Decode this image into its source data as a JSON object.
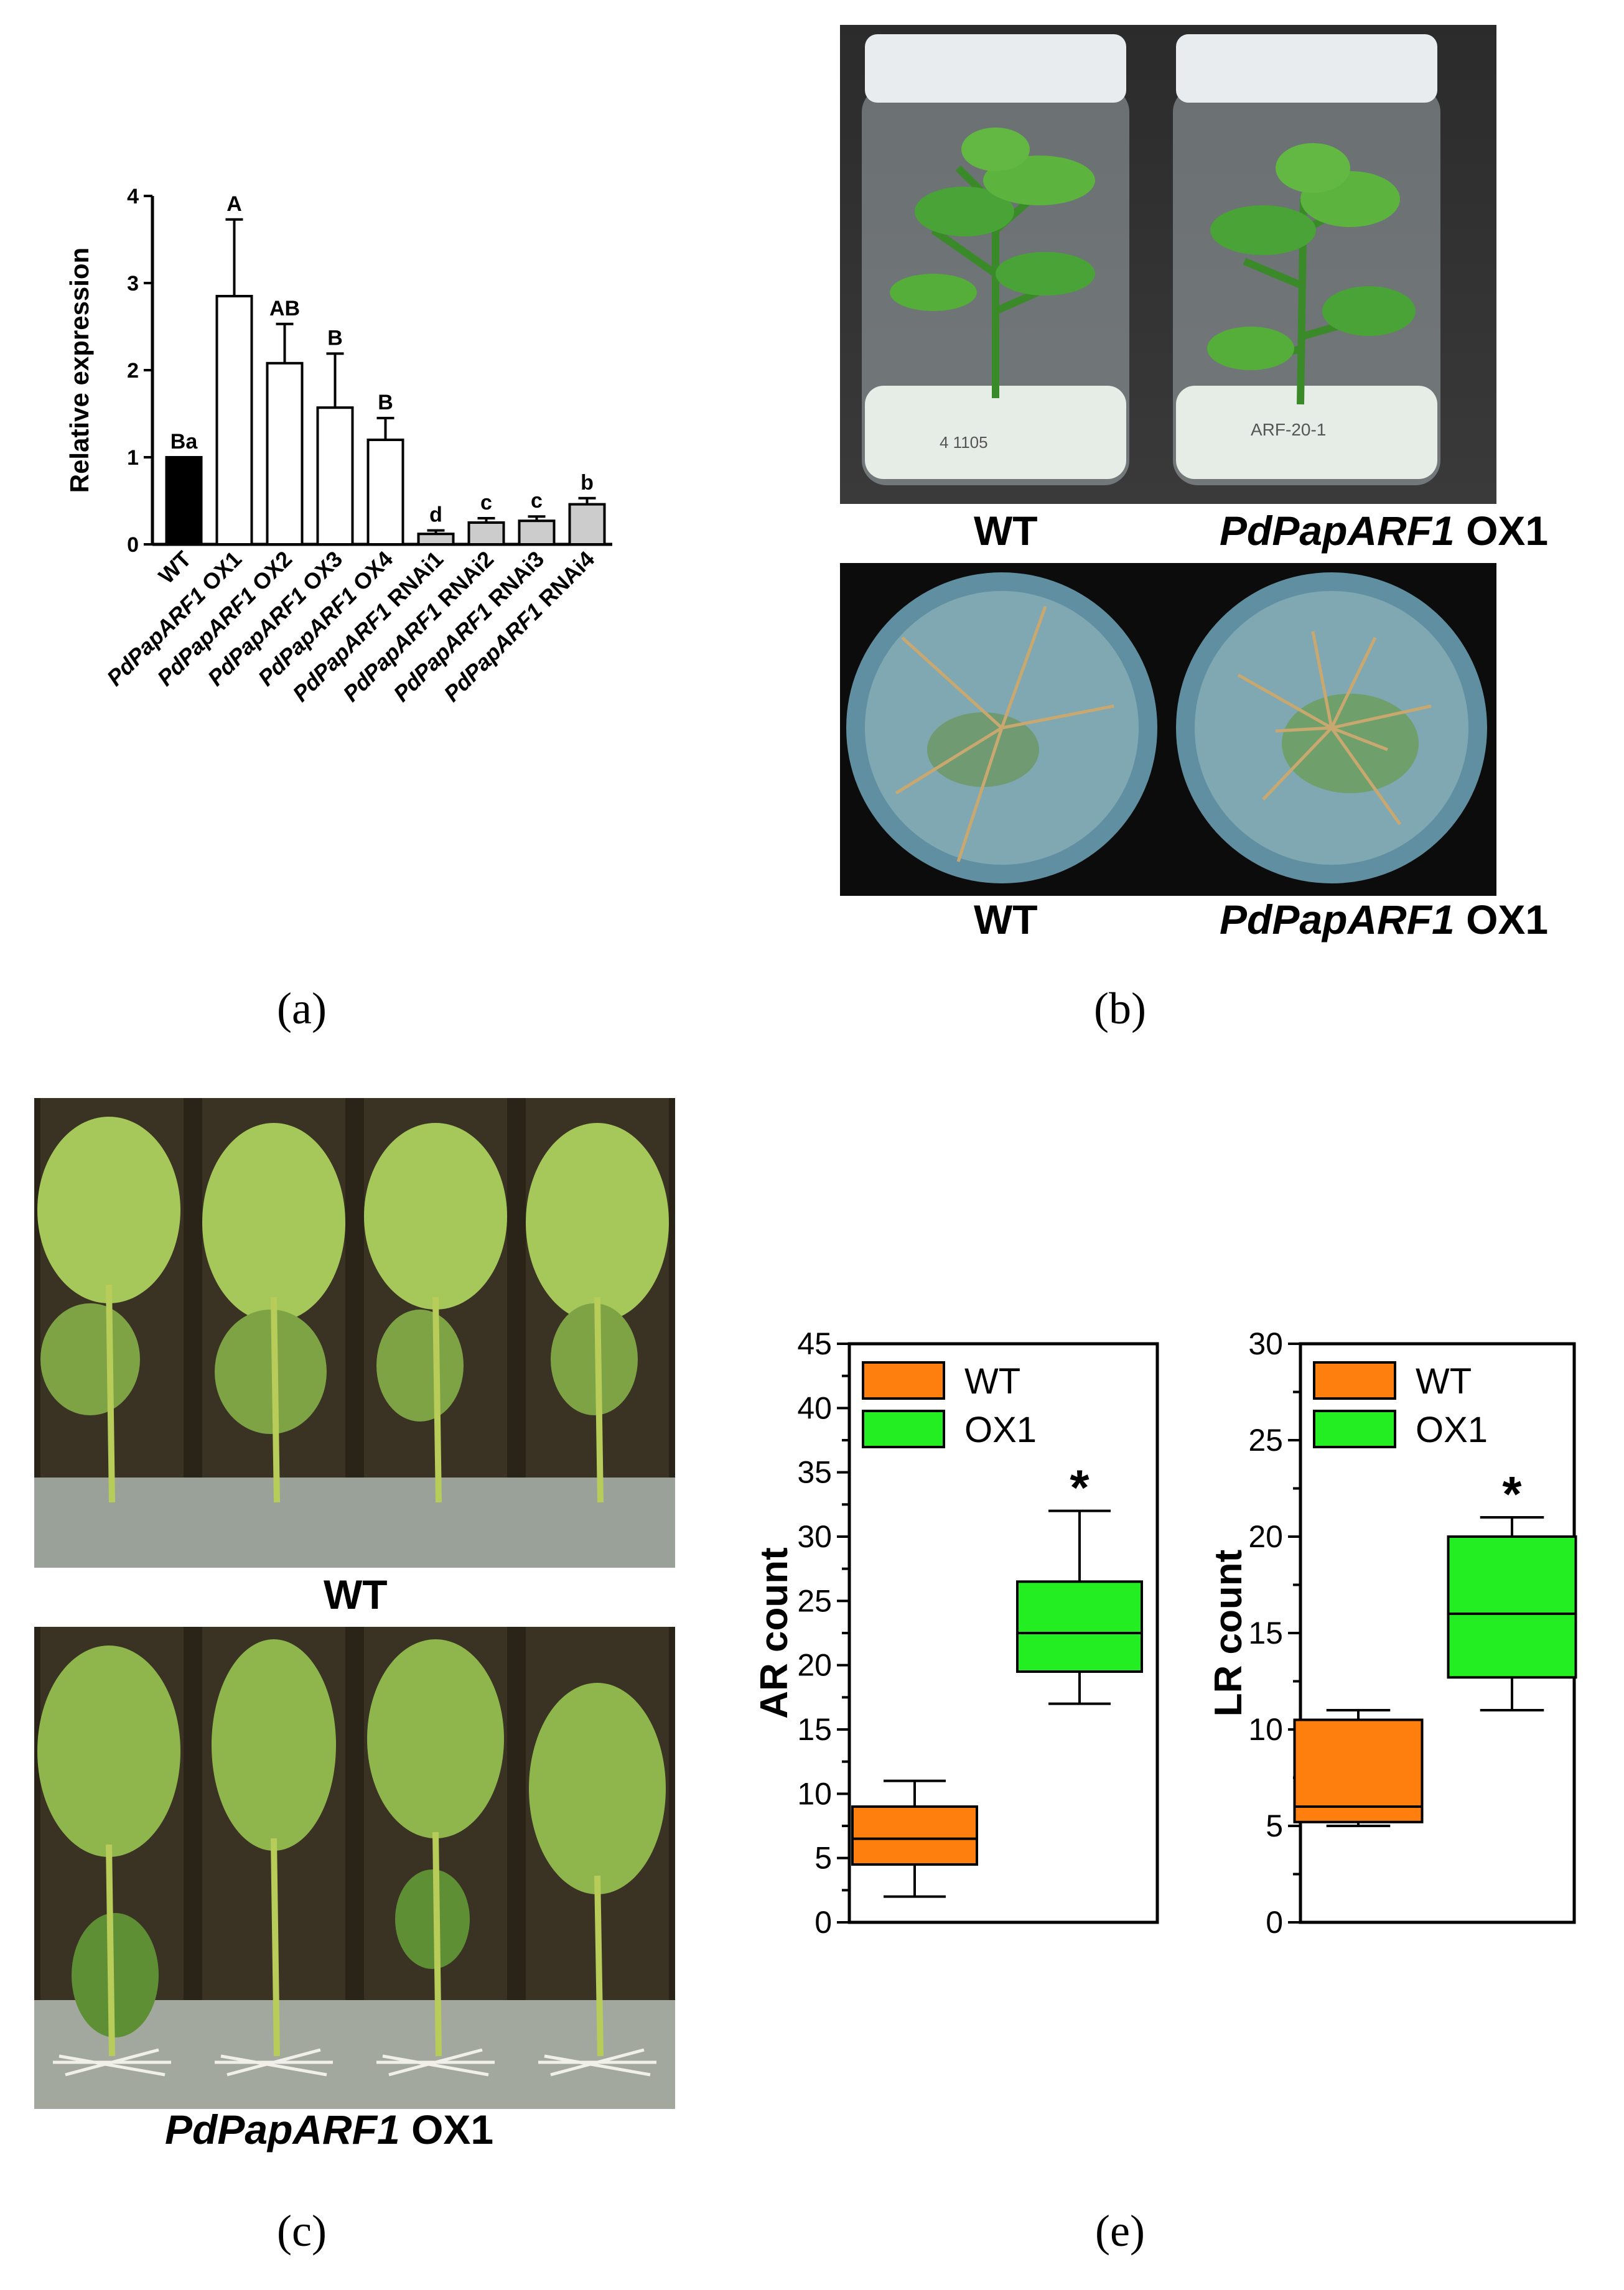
{
  "panels": {
    "a": "(a)",
    "b": "(b)",
    "c": "(c)",
    "e": "(e)"
  },
  "photo_b": {
    "top_caption_left": "WT",
    "top_caption_right_gene": "PdPapARF1",
    "top_caption_right_suffix": " OX1",
    "bottom_caption_left": "WT",
    "bottom_caption_right_gene": "PdPapARF1",
    "bottom_caption_right_suffix": " OX1",
    "jar_label_left": "4  1105",
    "jar_label_right": "ARF-20-1"
  },
  "photo_c": {
    "top_caption": "WT",
    "bottom_caption_gene": "PdPapARF1",
    "bottom_caption_suffix": " OX1"
  },
  "chart_data": [
    {
      "id": "a",
      "type": "bar",
      "ylabel": "Relative expression",
      "ylim": [
        0,
        4
      ],
      "yticks": [
        0,
        1,
        2,
        3,
        4
      ],
      "categories": [
        {
          "gene": "",
          "suffix": "WT"
        },
        {
          "gene": "PdPapARF1",
          "suffix": " OX1"
        },
        {
          "gene": "PdPapARF1",
          "suffix": " OX2"
        },
        {
          "gene": "PdPapARF1",
          "suffix": " OX3"
        },
        {
          "gene": "PdPapARF1",
          "suffix": " OX4"
        },
        {
          "gene": "PdPapARF1",
          "suffix": " RNAi1"
        },
        {
          "gene": "PdPapARF1",
          "suffix": " RNAi2"
        },
        {
          "gene": "PdPapARF1",
          "suffix": " RNAi3"
        },
        {
          "gene": "PdPapARF1",
          "suffix": " RNAi4"
        }
      ],
      "values": [
        1.0,
        2.85,
        2.08,
        1.57,
        1.2,
        0.12,
        0.25,
        0.27,
        0.46
      ],
      "errors": [
        0,
        0.88,
        0.45,
        0.62,
        0.25,
        0.04,
        0.05,
        0.05,
        0.07
      ],
      "letters": [
        "Ba",
        "A",
        "AB",
        "B",
        "B",
        "d",
        "c",
        "c",
        "b"
      ],
      "colors": [
        "#000000",
        "#ffffff",
        "#ffffff",
        "#ffffff",
        "#ffffff",
        "#cccccc",
        "#cccccc",
        "#cccccc",
        "#cccccc"
      ]
    },
    {
      "id": "e-left",
      "type": "box",
      "ylabel": "AR count",
      "ylim": [
        0,
        45
      ],
      "yticks": [
        0,
        5,
        10,
        15,
        20,
        25,
        30,
        35,
        40,
        45
      ],
      "legend": [
        "WT",
        "OX1"
      ],
      "colors": [
        "#ff7f0e",
        "#22ee22"
      ],
      "boxes": [
        {
          "name": "WT",
          "min": 2,
          "q1": 4.5,
          "median": 6.5,
          "q3": 9,
          "max": 11
        },
        {
          "name": "OX1",
          "min": 17,
          "q1": 19.5,
          "median": 22.5,
          "q3": 26.5,
          "max": 32,
          "mark": "*"
        }
      ]
    },
    {
      "id": "e-right",
      "type": "box",
      "ylabel": "LR count",
      "ylim": [
        0,
        30
      ],
      "yticks": [
        0,
        5,
        10,
        15,
        20,
        25,
        30
      ],
      "legend": [
        "WT",
        "OX1"
      ],
      "colors": [
        "#ff7f0e",
        "#22ee22"
      ],
      "boxes": [
        {
          "name": "WT",
          "min": 5,
          "q1": 5.2,
          "median": 6,
          "q3": 10.5,
          "max": 11
        },
        {
          "name": "OX1",
          "min": 11,
          "q1": 12.7,
          "median": 16,
          "q3": 20,
          "max": 21,
          "mark": "*"
        }
      ]
    }
  ]
}
